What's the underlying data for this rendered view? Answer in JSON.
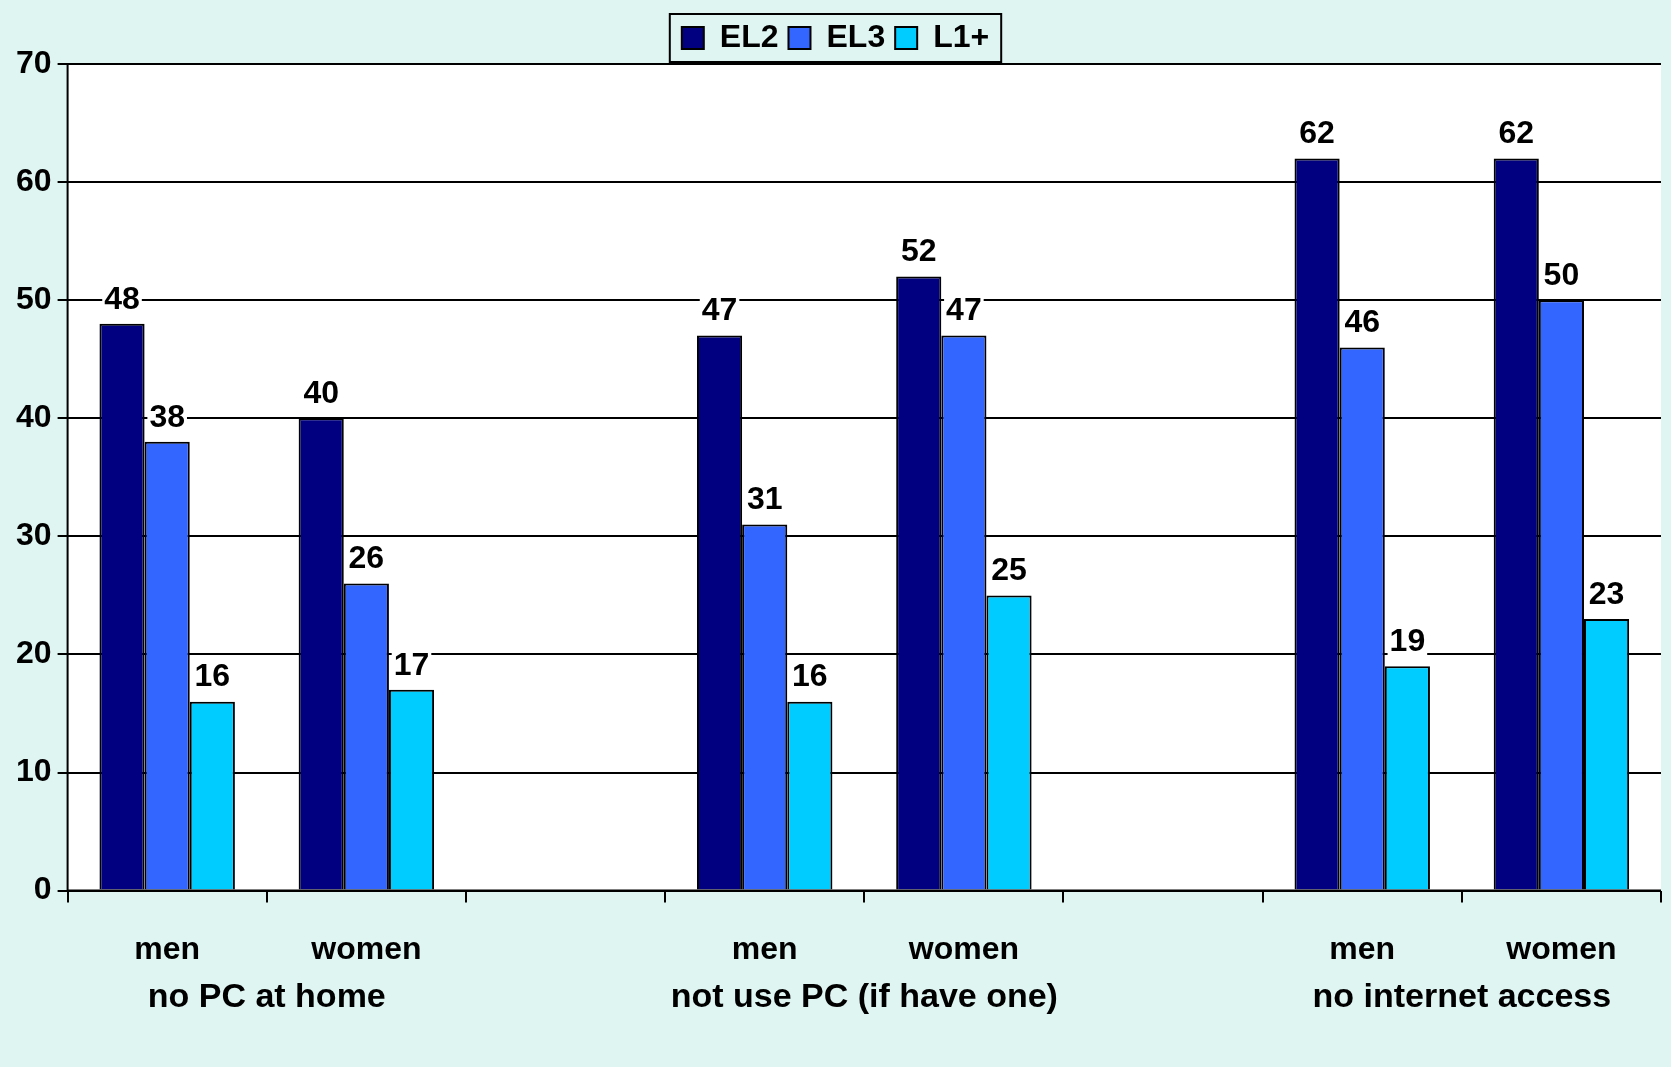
{
  "chart_data": {
    "type": "bar",
    "categories": [
      "men",
      "women",
      null,
      "men",
      "women",
      null,
      "men",
      "women"
    ],
    "series": [
      {
        "name": "EL2",
        "color": "#000080",
        "values": [
          48,
          40,
          null,
          47,
          52,
          null,
          62,
          62
        ]
      },
      {
        "name": "EL3",
        "color": "#3366ff",
        "values": [
          38,
          26,
          null,
          31,
          47,
          null,
          46,
          50
        ]
      },
      {
        "name": "L1+",
        "color": "#00ccff",
        "values": [
          16,
          17,
          null,
          16,
          25,
          null,
          19,
          23
        ]
      }
    ],
    "annotations": [
      "no PC at home",
      "not use PC (if have one)",
      "no internet access"
    ],
    "ylim": [
      0,
      70
    ],
    "yticks": [
      0,
      10,
      20,
      30,
      40,
      50,
      60,
      70
    ],
    "grid": "y",
    "legend": "top",
    "data_labels": true
  }
}
